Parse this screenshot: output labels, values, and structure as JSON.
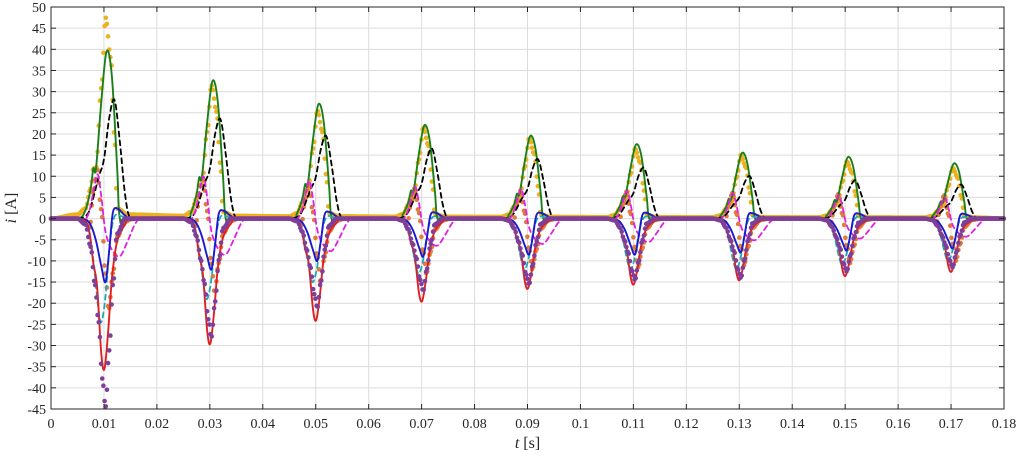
{
  "chart_data": {
    "type": "line",
    "xlabel_italic": "t",
    "xlabel_unit": " [s]",
    "ylabel_italic": "i",
    "ylabel_unit": " [A]",
    "xlim": [
      0,
      0.18
    ],
    "ylim": [
      -45,
      50
    ],
    "grid": true,
    "x_ticks": [
      0,
      0.01,
      0.02,
      0.03,
      0.04,
      0.05,
      0.06,
      0.07,
      0.08,
      0.09,
      0.1,
      0.11,
      0.12,
      0.13,
      0.14,
      0.15,
      0.16,
      0.17,
      0.18
    ],
    "x_tick_labels": [
      "0",
      "0.01",
      "0.02",
      "0.03",
      "0.04",
      "0.05",
      "0.06",
      "0.07",
      "0.08",
      "0.09",
      "0.1",
      "0.11",
      "0.12",
      "0.13",
      "0.14",
      "0.15",
      "0.16",
      "0.17",
      "0.18"
    ],
    "y_ticks": [
      50,
      45,
      40,
      35,
      30,
      25,
      20,
      15,
      10,
      5,
      0,
      -5,
      -10,
      -15,
      -20,
      -25,
      -30,
      -35,
      -40,
      -45
    ],
    "y_tick_labels": [
      "50",
      "45",
      "40",
      "35",
      "30",
      "25",
      "20",
      "15",
      "10",
      "5",
      "0",
      "-5",
      "-10",
      "-15",
      "-20",
      "-25",
      "-30",
      "-35",
      "-40",
      "-45"
    ],
    "cycle_starts": [
      0.0065,
      0.0265,
      0.0465,
      0.0665,
      0.0865,
      0.1065,
      0.1265,
      0.1465,
      0.1665
    ],
    "peaks": {
      "yellow_dots": [
        47.5,
        31.5,
        25.5,
        21.5,
        19,
        16.5,
        15,
        13.5,
        12
      ],
      "green": [
        39.5,
        32.5,
        27,
        22,
        19.5,
        17.5,
        15.5,
        14.5,
        13
      ],
      "black_dash": [
        28,
        23.5,
        19.5,
        16.5,
        14,
        12,
        10,
        9,
        8
      ],
      "magenta_dash": [
        10.5,
        10,
        9,
        7.5,
        7,
        6.5,
        6,
        5.5,
        5
      ],
      "cyan_dash": [
        -24.5,
        -19,
        -15,
        -13,
        -12,
        -12,
        -12,
        -11,
        -10
      ],
      "blue": [
        -15,
        -12,
        -10,
        -9,
        -8.5,
        -8.5,
        -8,
        -7.5,
        -7
      ],
      "red": [
        -35.5,
        -29.5,
        -24,
        -19.5,
        -16.5,
        -15.5,
        -14.5,
        -13.5,
        -12.5
      ],
      "purple_dots": [
        -44.5,
        -28,
        -21,
        -17,
        -15.5,
        -14.5,
        -14,
        -12.5,
        -11.5
      ],
      "orange_dots": [
        -21.5,
        -17.5,
        -15,
        -13,
        -12,
        -11.5,
        -11,
        -10.5,
        -10
      ]
    },
    "series": [
      {
        "key": "yellow_dots",
        "style": "dots",
        "color": "#EDB120"
      },
      {
        "key": "orange_dots",
        "style": "dots",
        "color": "#E07B39"
      },
      {
        "key": "green",
        "style": "solid",
        "color": "#1B7F1B"
      },
      {
        "key": "black_dash",
        "style": "dashed",
        "color": "#000000"
      },
      {
        "key": "magenta_dash",
        "style": "dashed",
        "color": "#E020E0"
      },
      {
        "key": "cyan_dash",
        "style": "dashed",
        "color": "#20A8B8"
      },
      {
        "key": "blue",
        "style": "solid",
        "color": "#1A1AD0"
      },
      {
        "key": "red",
        "style": "solid",
        "color": "#E02020"
      },
      {
        "key": "purple_dots",
        "style": "dots",
        "color": "#7E3F98"
      }
    ]
  }
}
